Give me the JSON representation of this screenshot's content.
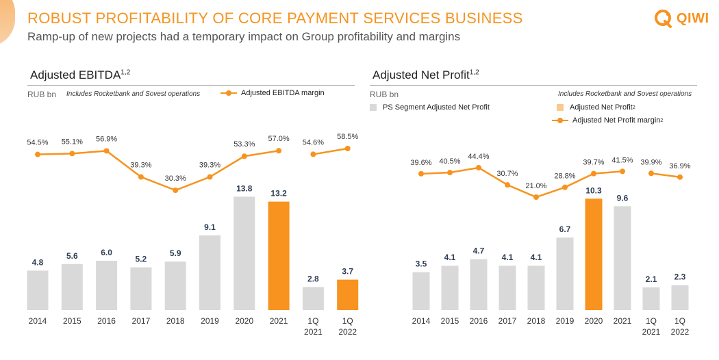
{
  "header": {
    "title": "ROBUST PROFITABILITY OF CORE PAYMENT SERVICES BUSINESS",
    "subtitle": "Ramp-up of new projects had a temporary impact on Group profitability and margins",
    "logo_text": "QIWI"
  },
  "colors": {
    "accent": "#f7931e",
    "bar_gray": "#d9d9d9",
    "value_label": "#2f3e55",
    "margin_label": "#333333"
  },
  "chart_data": [
    {
      "type": "bar",
      "title": "Adjusted EBITDA",
      "title_sup": "1,2",
      "unit": "RUB bn",
      "note": "Includes Rocketbank and Sovest operations",
      "legend": [
        {
          "label": "Adjusted EBITDA margin",
          "sup": "",
          "kind": "line"
        }
      ],
      "categories": [
        "2014",
        "2015",
        "2016",
        "2017",
        "2018",
        "2019",
        "2020",
        "2021",
        "1Q\n2021",
        "1Q\n2022"
      ],
      "values": [
        4.8,
        5.6,
        6.0,
        5.2,
        5.9,
        9.1,
        13.8,
        13.2,
        2.8,
        3.7
      ],
      "value_labels": [
        "4.8",
        "5.6",
        "6.0",
        "5.2",
        "5.9",
        "9.1",
        "13.8",
        "13.2",
        "2.8",
        "3.7"
      ],
      "highlight": [
        false,
        false,
        false,
        false,
        false,
        false,
        false,
        true,
        false,
        true
      ],
      "margin_values": [
        54.5,
        55.1,
        56.9,
        39.3,
        30.3,
        39.3,
        53.3,
        57.0,
        54.6,
        58.5
      ],
      "margin_labels": [
        "54.5%",
        "55.1%",
        "56.9%",
        "39.3%",
        "30.3%",
        "39.3%",
        "53.3%",
        "57.0%",
        "54.6%",
        "58.5%"
      ],
      "margin_segments": [
        [
          0,
          7
        ],
        [
          8,
          9
        ]
      ]
    },
    {
      "type": "bar",
      "title": "Adjusted Net Profit",
      "title_sup": "1,2",
      "unit": "RUB bn",
      "note": "Includes Rocketbank and Sovest operations",
      "legend": [
        {
          "label": "PS Segment Adjusted Net Profit",
          "sup": "",
          "kind": "bar-gray"
        },
        {
          "label": "Adjusted Net Profit",
          "sup": "2",
          "kind": "bar-accent"
        },
        {
          "label": "Adjusted Net Profit margin",
          "sup": "2",
          "kind": "line"
        }
      ],
      "categories": [
        "2014",
        "2015",
        "2016",
        "2017",
        "2018",
        "2019",
        "2020",
        "2021",
        "1Q\n2021",
        "1Q\n2022"
      ],
      "values": [
        3.5,
        4.1,
        4.7,
        4.1,
        4.1,
        6.7,
        10.3,
        9.6,
        2.1,
        2.3
      ],
      "value_labels": [
        "3.5",
        "4.1",
        "4.7",
        "4.1",
        "4.1",
        "6.7",
        "10.3",
        "9.6",
        "2.1",
        "2.3"
      ],
      "highlight": [
        false,
        false,
        false,
        false,
        false,
        false,
        true,
        false,
        false,
        false
      ],
      "margin_values": [
        39.6,
        40.5,
        44.4,
        30.7,
        21.0,
        28.8,
        39.7,
        41.5,
        39.9,
        36.9
      ],
      "margin_labels": [
        "39.6%",
        "40.5%",
        "44.4%",
        "30.7%",
        "21.0%",
        "28.8%",
        "39.7%",
        "41.5%",
        "39.9%",
        "36.9%"
      ],
      "margin_segments": [
        [
          0,
          7
        ],
        [
          8,
          9
        ]
      ]
    }
  ]
}
